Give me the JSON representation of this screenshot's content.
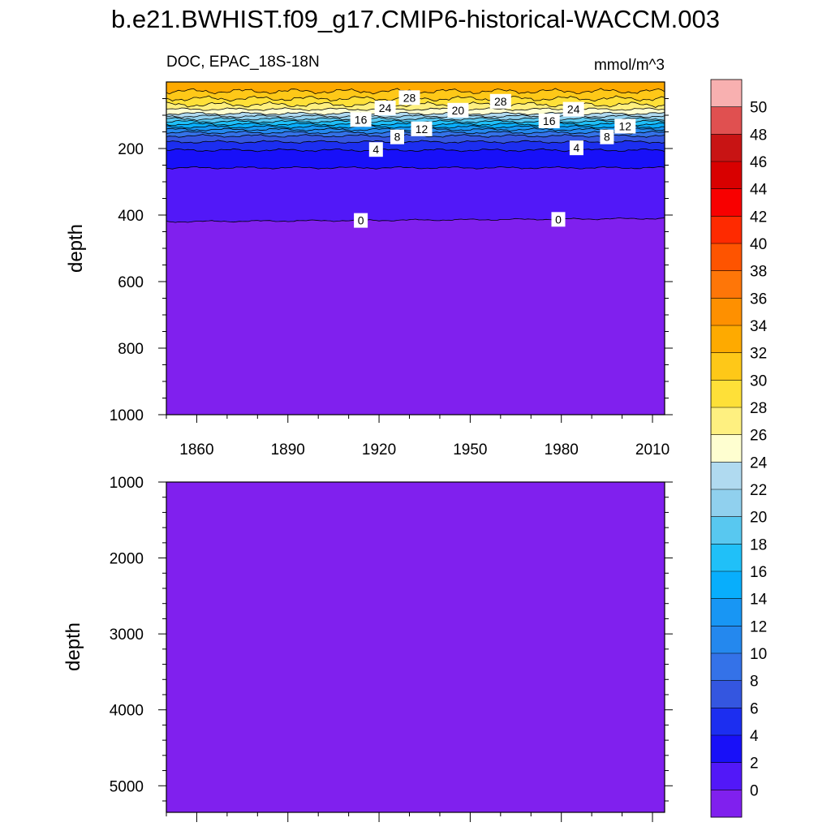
{
  "chart_data": [
    {
      "type": "heatmap",
      "title": "b.e21.BWHIST.f09_g17.CMIP6-historical-WACCM.003",
      "subtitle_left": "DOC, EPAC_18S-18N",
      "units": "mmol/m^3",
      "xlabel": "",
      "ylabel": "depth",
      "xlim": [
        1850,
        2014
      ],
      "ylim": [
        1000,
        0
      ],
      "x_ticks": [
        1860,
        1890,
        1920,
        1950,
        1980,
        2010
      ],
      "y_ticks": [
        200,
        400,
        600,
        800,
        1000
      ],
      "contour_levels_mmol_m3": [
        0,
        2,
        4,
        6,
        8,
        10,
        12,
        14,
        16,
        18,
        20,
        22,
        24,
        26,
        28,
        30,
        32
      ],
      "isoline_depths_m": {
        "0": 420,
        "2": 258,
        "4": 205,
        "6": 180,
        "8": 162,
        "10": 152,
        "12": 143,
        "14": 135,
        "16": 127,
        "18": 119,
        "20": 111,
        "22": 103,
        "24": 95,
        "26": 82,
        "28": 68,
        "30": 50,
        "32": 28
      },
      "contour_labels": [
        {
          "text": "24",
          "year": 1922,
          "depth": 78
        },
        {
          "text": "28",
          "year": 1930,
          "depth": 47
        },
        {
          "text": "20",
          "year": 1946,
          "depth": 85
        },
        {
          "text": "28",
          "year": 1960,
          "depth": 58
        },
        {
          "text": "16",
          "year": 1914,
          "depth": 113
        },
        {
          "text": "12",
          "year": 1934,
          "depth": 141
        },
        {
          "text": "8",
          "year": 1926,
          "depth": 165
        },
        {
          "text": "16",
          "year": 1976,
          "depth": 117
        },
        {
          "text": "24",
          "year": 1984,
          "depth": 82
        },
        {
          "text": "8",
          "year": 1995,
          "depth": 165
        },
        {
          "text": "12",
          "year": 2001,
          "depth": 133
        },
        {
          "text": "4",
          "year": 1919,
          "depth": 203
        },
        {
          "text": "4",
          "year": 1985,
          "depth": 198
        },
        {
          "text": "0",
          "year": 1914,
          "depth": 416
        },
        {
          "text": "0",
          "year": 1979,
          "depth": 413
        }
      ]
    },
    {
      "type": "heatmap",
      "xlabel": "",
      "ylabel": "depth",
      "xlim": [
        1850,
        2014
      ],
      "ylim": [
        5350,
        1000
      ],
      "y_ticks": [
        1000,
        2000,
        3000,
        4000,
        5000
      ],
      "value_range_mmol_m3": "below 0 (uniform lowest color band)"
    }
  ],
  "colorbar": {
    "levels": [
      0,
      2,
      4,
      6,
      8,
      10,
      12,
      14,
      16,
      18,
      20,
      22,
      24,
      26,
      28,
      30,
      32,
      34,
      36,
      38,
      40,
      42,
      44,
      46,
      48,
      50
    ],
    "colors": [
      "#8020ee",
      "#5218f8",
      "#1810f8",
      "#1c2ef0",
      "#3456e0",
      "#3472e8",
      "#2488ee",
      "#1896f4",
      "#08aefc",
      "#20c0f8",
      "#58c8f0",
      "#90d0ee",
      "#b0daf0",
      "#fefed0",
      "#fef080",
      "#fee038",
      "#fec818",
      "#feaa00",
      "#fe9000",
      "#fe7608",
      "#fe5400",
      "#fe2a00",
      "#f80000",
      "#d80000",
      "#c81414",
      "#e05050",
      "#f8b0b0"
    ]
  }
}
